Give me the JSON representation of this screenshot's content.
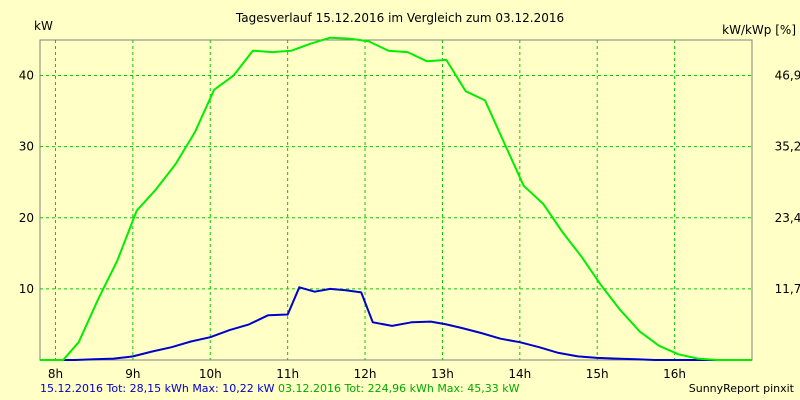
{
  "chart_data": {
    "type": "line",
    "title": "Tagesverlauf 15.12.2016 im Vergleich zum 03.12.2016",
    "ylabel_left": "kW",
    "ylabel_right": "kW/kWp [%]",
    "x_ticks": [
      "8h",
      "9h",
      "10h",
      "11h",
      "12h",
      "13h",
      "14h",
      "15h",
      "16h"
    ],
    "y_ticks_left": [
      "10",
      "20",
      "30",
      "40"
    ],
    "y_ticks_right": [
      "11,7",
      "23,4",
      "35,2",
      "46,9"
    ],
    "xlim": [
      7.8,
      17.0
    ],
    "ylim": [
      0,
      45
    ],
    "grid": true,
    "series": [
      {
        "name": "15.12.2016",
        "color": "#0000cc",
        "x": [
          7.8,
          8.0,
          8.25,
          8.5,
          8.75,
          9.0,
          9.25,
          9.5,
          9.75,
          10.0,
          10.25,
          10.5,
          10.75,
          11.0,
          11.15,
          11.35,
          11.55,
          11.75,
          11.95,
          12.1,
          12.35,
          12.6,
          12.85,
          13.05,
          13.25,
          13.5,
          13.75,
          14.0,
          14.25,
          14.5,
          14.75,
          15.0,
          15.25,
          15.5,
          15.75,
          16.0,
          16.25,
          16.5,
          16.75,
          17.0
        ],
        "values": [
          0,
          0,
          0,
          0.1,
          0.2,
          0.5,
          1.2,
          1.8,
          2.6,
          3.2,
          4.2,
          5.0,
          6.3,
          6.4,
          10.22,
          9.6,
          10.0,
          9.8,
          9.5,
          5.3,
          4.8,
          5.3,
          5.4,
          5.0,
          4.5,
          3.8,
          3.0,
          2.5,
          1.8,
          1.0,
          0.5,
          0.3,
          0.2,
          0.1,
          0,
          0,
          0,
          0,
          0,
          0
        ],
        "summary": {
          "date": "15.12.2016",
          "tot_label": "Tot:",
          "tot": "28,15 kWh",
          "max_label": "Max:",
          "max": "10,22 kW"
        }
      },
      {
        "name": "03.12.2016",
        "color": "#00ee00",
        "x": [
          7.8,
          8.0,
          8.1,
          8.3,
          8.55,
          8.8,
          9.05,
          9.3,
          9.55,
          9.8,
          10.05,
          10.3,
          10.55,
          10.8,
          11.05,
          11.3,
          11.55,
          11.8,
          12.05,
          12.3,
          12.55,
          12.8,
          13.05,
          13.3,
          13.55,
          13.8,
          14.05,
          14.3,
          14.55,
          14.8,
          15.05,
          15.3,
          15.55,
          15.8,
          16.05,
          16.3,
          16.55,
          16.8,
          17.0
        ],
        "values": [
          0,
          0,
          0,
          2.5,
          8.5,
          14.0,
          21.0,
          24.0,
          27.5,
          32.0,
          38.0,
          40.0,
          43.5,
          43.3,
          43.5,
          44.5,
          45.33,
          45.2,
          44.8,
          43.5,
          43.3,
          42.0,
          42.2,
          37.8,
          36.5,
          30.5,
          24.5,
          22.0,
          18.0,
          14.5,
          10.5,
          7.0,
          4.0,
          2.0,
          0.8,
          0.2,
          0,
          0,
          0
        ],
        "summary": {
          "date": "03.12.2016",
          "tot_label": "Tot:",
          "tot": "224,96 kWh",
          "max_label": "Max:",
          "max": "45,33 kW"
        }
      }
    ],
    "source": "SunnyReport pinxit"
  }
}
